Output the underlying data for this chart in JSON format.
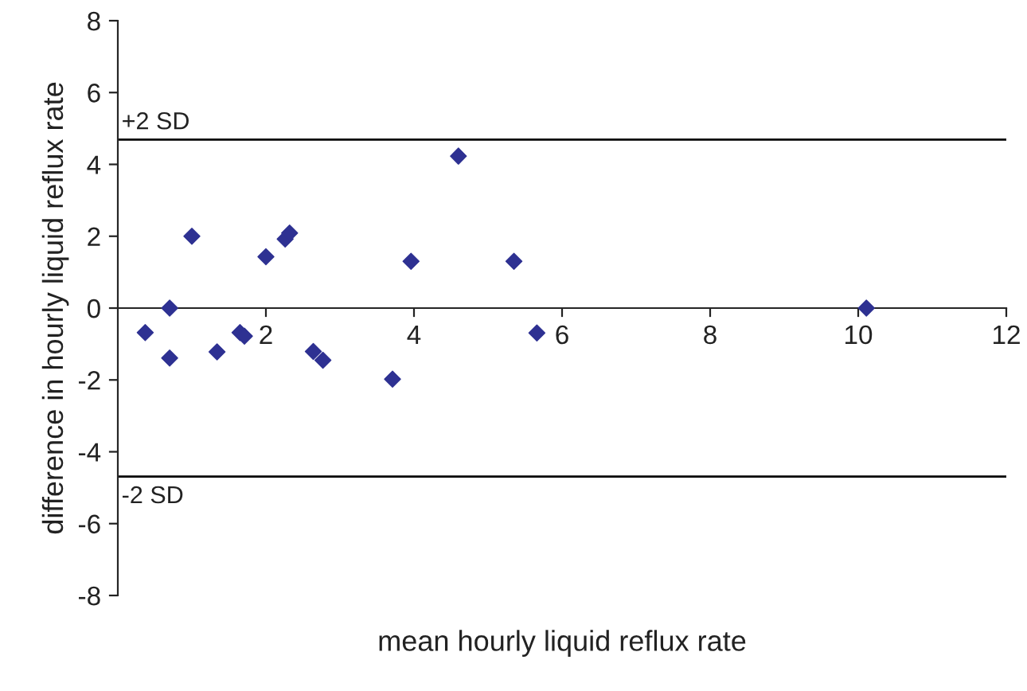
{
  "chart_data": {
    "type": "scatter",
    "xlabel": "mean hourly liquid reflux rate",
    "ylabel": "difference in hourly liquid reflux rate",
    "x": [
      0.37,
      0.7,
      0.7,
      1.0,
      1.34,
      1.65,
      1.71,
      2.0,
      2.26,
      2.32,
      2.64,
      2.77,
      3.71,
      3.96,
      4.6,
      5.35,
      5.66,
      10.11
    ],
    "series": [
      {
        "color": "#2e3192",
        "values": [
          -0.68,
          0,
          -1.39,
          2.0,
          -1.22,
          -0.68,
          -0.78,
          1.43,
          1.92,
          2.09,
          -1.21,
          -1.45,
          -1.98,
          1.3,
          4.23,
          1.3,
          -0.69,
          0
        ]
      }
    ],
    "xlim": [
      0,
      12
    ],
    "xticks": [
      2,
      4,
      6,
      8,
      10,
      12
    ],
    "ylim": [
      -8,
      8
    ],
    "yticks": [
      -8,
      -6,
      -4,
      -2,
      0,
      2,
      4,
      6,
      8
    ],
    "ref_lines": [
      {
        "axis": "y",
        "value": 4.69,
        "label": "+2 SD",
        "color": "#000000"
      },
      {
        "axis": "y",
        "value": -4.69,
        "label": "-2 SD",
        "color": "#000000"
      }
    ],
    "marker": "diamond",
    "grid": false,
    "legend": false
  }
}
